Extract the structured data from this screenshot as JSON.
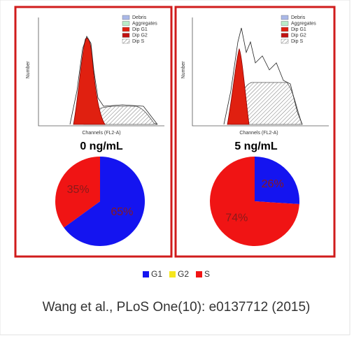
{
  "chart_data": [
    {
      "type": "pie",
      "title": "0 ng/mL",
      "categories": [
        "G1",
        "G2",
        "S"
      ],
      "values": [
        65,
        0,
        35
      ],
      "value_labels": [
        "65%",
        null,
        "35%"
      ],
      "colors": [
        "#1414f0",
        "#f5e61e",
        "#f01414"
      ]
    },
    {
      "type": "pie",
      "title": "5 ng/mL",
      "categories": [
        "G1",
        "G2",
        "S"
      ],
      "values": [
        26,
        0,
        74
      ],
      "value_labels": [
        "26%",
        null,
        "74%"
      ],
      "colors": [
        "#1414f0",
        "#f5e61e",
        "#f01414"
      ]
    }
  ],
  "histogram_legend": [
    "Debris",
    "Aggregates",
    "Dip G1",
    "Dip G2",
    "Dip S"
  ],
  "histogram_axis": {
    "x": "Channels (FL2-A)",
    "y": "Number"
  },
  "caption": "Wang et al., PLoS One(10): e0137712 (2015)"
}
